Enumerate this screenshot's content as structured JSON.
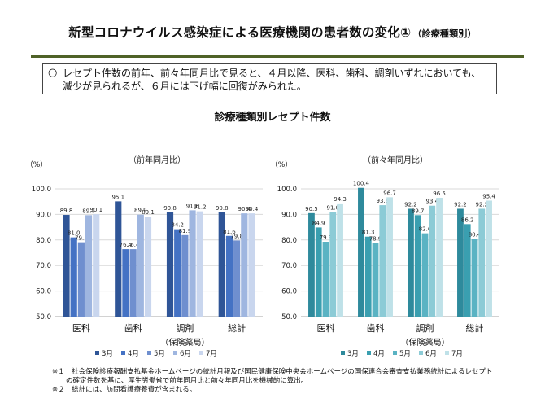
{
  "page": {
    "title": "新型コロナウイルス感染症による医療機関の患者数の変化①",
    "title_suffix": "（診療種類別）",
    "callout_mark": "○",
    "callout_text": "レセプト件数の前年、前々年同月比で見ると、４月以降、医科、歯科、調剤いずれにおいても、減少が見られるが、６月には下げ幅に回復がみられた。",
    "chart_heading": "診療種類別レセプト件数",
    "footnotes": [
      "※１　社会保険診療報酬支払基金ホームページの統計月報及び国民健康保険中央会ホームページの国保連合会審査支払業務統計によるレセプト",
      "　　の確定件数を基に、厚生労働省で前年同月比と前々年同月比を機械的に算出。",
      "※２　総計には、訪問看護療養費が含まれる。"
    ]
  },
  "chart_data": [
    {
      "type": "bar",
      "title": "（前年同月比）",
      "unit_label": "（%）",
      "categories": [
        "医科",
        "歯科",
        "調剤",
        "総計"
      ],
      "category_sub": [
        "",
        "",
        "（保険薬局）",
        ""
      ],
      "ylim": [
        50,
        100
      ],
      "yticks": [
        "50.0",
        "60.0",
        "70.0",
        "80.0",
        "90.0",
        "100.0"
      ],
      "grid": true,
      "legend_position": "bottom",
      "series": [
        {
          "name": "3月",
          "color": "#2f5597",
          "values": [
            89.8,
            95.1,
            90.8,
            90.8
          ],
          "labels": [
            "89.8",
            "95.1",
            "90.8",
            "90.8"
          ]
        },
        {
          "name": "4月",
          "color": "#4472c4",
          "values": [
            81.0,
            76.4,
            84.2,
            81.6
          ],
          "labels": [
            "81.0",
            "76.4",
            "84.2",
            "81.6"
          ]
        },
        {
          "name": "5月",
          "color": "#6f8fcf",
          "values": [
            79.1,
            76.4,
            81.9,
            79.8
          ],
          "labels": [
            "79.1",
            "76.4",
            "81.9",
            "79.8"
          ]
        },
        {
          "name": "6月",
          "color": "#9fb6e0",
          "values": [
            89.7,
            89.9,
            91.6,
            90.4
          ],
          "labels": [
            "89.7",
            "89.9",
            "91.6",
            "90.4"
          ]
        },
        {
          "name": "7月",
          "color": "#c9d6ee",
          "values": [
            90.1,
            89.1,
            91.2,
            90.4
          ],
          "labels": [
            "90.1",
            "89.1",
            "91.2",
            "90.4"
          ]
        }
      ]
    },
    {
      "type": "bar",
      "title": "（前々年同月比）",
      "unit_label": "（%）",
      "categories": [
        "医科",
        "歯科",
        "調剤",
        "総計"
      ],
      "category_sub": [
        "",
        "",
        "（保険薬局）",
        ""
      ],
      "ylim": [
        50,
        100
      ],
      "yticks": [
        "50.0",
        "60.0",
        "70.0",
        "80.0",
        "90.0",
        "100.0"
      ],
      "grid": true,
      "legend_position": "bottom",
      "series": [
        {
          "name": "3月",
          "color": "#2e8a9c",
          "values": [
            90.5,
            100.4,
            92.2,
            92.2
          ],
          "labels": [
            "90.5",
            "100.4",
            "92.2",
            "92.2"
          ]
        },
        {
          "name": "4月",
          "color": "#3a9fb0",
          "values": [
            84.9,
            81.3,
            89.7,
            86.2
          ],
          "labels": [
            "84.9",
            "81.3",
            "89.7",
            "86.2"
          ]
        },
        {
          "name": "5月",
          "color": "#5ab3c3",
          "values": [
            79.3,
            78.9,
            82.6,
            80.4
          ],
          "labels": [
            "79.3",
            "78.9",
            "82.6",
            "80.4"
          ]
        },
        {
          "name": "6月",
          "color": "#8ccbd6",
          "values": [
            91.0,
            93.6,
            93.4,
            92.2
          ],
          "labels": [
            "91.0",
            "93.6",
            "93.4",
            "92.2"
          ]
        },
        {
          "name": "7月",
          "color": "#bfe1e8",
          "values": [
            94.3,
            96.7,
            96.5,
            95.4
          ],
          "labels": [
            "94.3",
            "96.7",
            "96.5",
            "95.4"
          ]
        }
      ]
    }
  ]
}
